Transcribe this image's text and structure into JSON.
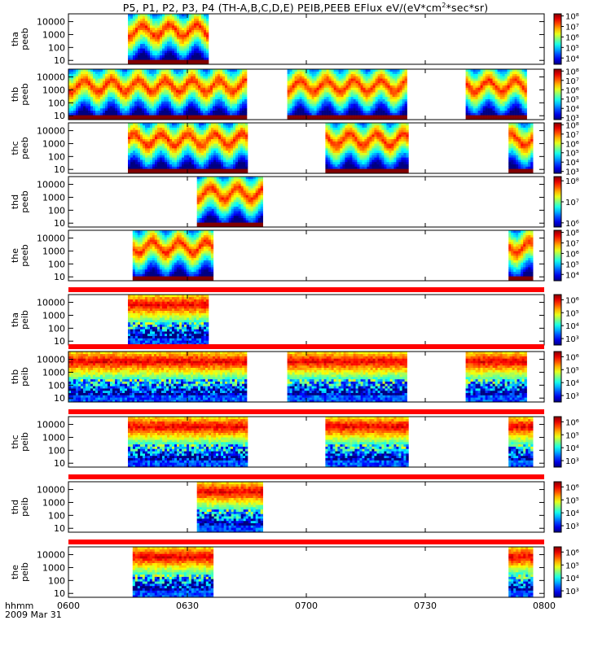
{
  "title": {
    "main": "P5, P1, P2, P3, P4 (TH-A,B,C,D,E) PEIB,PEEB EFlux eV/(eV*cm",
    "sup": "2",
    "end": "*sec*sr)"
  },
  "chart_data": {
    "type": "heatmap",
    "x_axis": {
      "label_line1": "hhmm",
      "label_line2": "2009 Mar 31",
      "ticks": [
        "0600",
        "0630",
        "0700",
        "0730",
        "0800"
      ],
      "tick_times_hours": [
        6.0,
        6.5,
        7.0,
        7.5,
        8.0
      ],
      "range_hours": [
        6.0,
        8.0
      ]
    },
    "panels": [
      {
        "name": "tha peeb",
        "ylabel": [
          "tha",
          "peeb"
        ],
        "yticks": [
          "10",
          "100",
          "1000",
          "10000"
        ],
        "yscale": "log",
        "yrange": [
          5,
          40000
        ],
        "cbar_ticks": [
          "10⁴",
          "10⁵",
          "10⁶",
          "10⁷",
          "10⁸"
        ],
        "cbar_log_range": [
          3.4,
          8.2
        ],
        "data_intervals_hours": [
          [
            6.25,
            6.58
          ]
        ],
        "style": "electron"
      },
      {
        "name": "thb peeb",
        "ylabel": [
          "thb",
          "peeb"
        ],
        "yticks": [
          "10",
          "100",
          "1000",
          "10000"
        ],
        "yscale": "log",
        "yrange": [
          5,
          40000
        ],
        "cbar_ticks": [
          "10³",
          "10⁴",
          "10⁵",
          "10⁶",
          "10⁷",
          "10⁸"
        ],
        "cbar_log_range": [
          2.8,
          8.2
        ],
        "data_intervals_hours": [
          [
            6.0,
            6.75
          ],
          [
            6.92,
            7.42
          ],
          [
            7.67,
            7.92
          ]
        ],
        "style": "electron"
      },
      {
        "name": "thc peeb",
        "ylabel": [
          "thc",
          "peeb"
        ],
        "yticks": [
          "10",
          "100",
          "1000",
          "10000"
        ],
        "yscale": "log",
        "yrange": [
          5,
          40000
        ],
        "cbar_ticks": [
          "10³",
          "10⁴",
          "10⁵",
          "10⁶",
          "10⁷",
          "10⁸"
        ],
        "cbar_log_range": [
          2.8,
          8.2
        ],
        "data_intervals_hours": [
          [
            6.25,
            6.75
          ],
          [
            7.08,
            7.42
          ],
          [
            7.85,
            7.95
          ]
        ],
        "style": "electron"
      },
      {
        "name": "thd peeb",
        "ylabel": [
          "thd",
          "peeb"
        ],
        "yticks": [
          "10",
          "100",
          "1000",
          "10000"
        ],
        "yscale": "log",
        "yrange": [
          5,
          40000
        ],
        "cbar_ticks": [
          "10⁶",
          "10⁷",
          "10⁸"
        ],
        "cbar_log_range": [
          5.8,
          8.2
        ],
        "data_intervals_hours": [
          [
            6.54,
            6.81
          ]
        ],
        "style": "electron"
      },
      {
        "name": "the peeb",
        "ylabel": [
          "the",
          "peeb"
        ],
        "yticks": [
          "10",
          "100",
          "1000",
          "10000"
        ],
        "yscale": "log",
        "yrange": [
          5,
          40000
        ],
        "cbar_ticks": [
          "10⁴",
          "10⁵",
          "10⁶",
          "10⁷",
          "10⁸"
        ],
        "cbar_log_range": [
          3.4,
          8.2
        ],
        "data_intervals_hours": [
          [
            6.27,
            6.6
          ],
          [
            7.85,
            7.95
          ]
        ],
        "style": "electron"
      },
      {
        "name": "tha peib",
        "ylabel": [
          "tha",
          "peib"
        ],
        "yticks": [
          "10",
          "100",
          "1000",
          "10000"
        ],
        "yscale": "log",
        "yrange": [
          5,
          40000
        ],
        "cbar_ticks": [
          "10³",
          "10⁴",
          "10⁵",
          "10⁶"
        ],
        "cbar_log_range": [
          2.5,
          6.4
        ],
        "data_intervals_hours": [
          [
            6.25,
            6.58
          ]
        ],
        "style": "ion"
      },
      {
        "name": "thb peib",
        "ylabel": [
          "thb",
          "peib"
        ],
        "yticks": [
          "10",
          "100",
          "1000",
          "10000"
        ],
        "yscale": "log",
        "yrange": [
          5,
          40000
        ],
        "cbar_ticks": [
          "10³",
          "10⁴",
          "10⁵",
          "10⁶"
        ],
        "cbar_log_range": [
          2.5,
          6.4
        ],
        "data_intervals_hours": [
          [
            6.0,
            6.75
          ],
          [
            6.92,
            7.42
          ],
          [
            7.67,
            7.92
          ]
        ],
        "style": "ion"
      },
      {
        "name": "thc peib",
        "ylabel": [
          "thc",
          "peib"
        ],
        "yticks": [
          "10",
          "100",
          "1000",
          "10000"
        ],
        "yscale": "log",
        "yrange": [
          5,
          40000
        ],
        "cbar_ticks": [
          "10³",
          "10⁴",
          "10⁵",
          "10⁶"
        ],
        "cbar_log_range": [
          2.5,
          6.4
        ],
        "data_intervals_hours": [
          [
            6.25,
            6.75
          ],
          [
            7.08,
            7.42
          ],
          [
            7.85,
            7.95
          ]
        ],
        "style": "ion"
      },
      {
        "name": "thd peib",
        "ylabel": [
          "thd",
          "peib"
        ],
        "yticks": [
          "10",
          "100",
          "1000",
          "10000"
        ],
        "yscale": "log",
        "yrange": [
          5,
          40000
        ],
        "cbar_ticks": [
          "10³",
          "10⁴",
          "10⁵",
          "10⁶"
        ],
        "cbar_log_range": [
          2.5,
          6.4
        ],
        "data_intervals_hours": [
          [
            6.54,
            6.81
          ]
        ],
        "style": "ion"
      },
      {
        "name": "the peib",
        "ylabel": [
          "the",
          "peib"
        ],
        "yticks": [
          "10",
          "100",
          "1000",
          "10000"
        ],
        "yscale": "log",
        "yrange": [
          5,
          40000
        ],
        "cbar_ticks": [
          "10³",
          "10⁴",
          "10⁵",
          "10⁶"
        ],
        "cbar_log_range": [
          2.5,
          6.4
        ],
        "data_intervals_hours": [
          [
            6.27,
            6.6
          ],
          [
            7.85,
            7.95
          ]
        ],
        "style": "ion"
      }
    ]
  }
}
